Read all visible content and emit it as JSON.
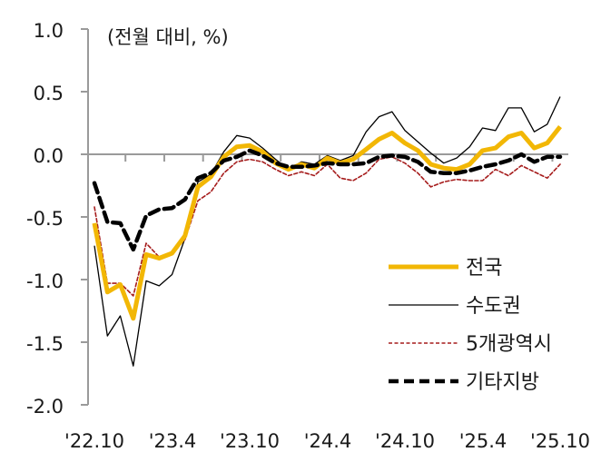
{
  "chart_data": {
    "type": "line",
    "title": "",
    "unit_note": "(전월 대비, %)",
    "xlabel": "",
    "ylabel": "",
    "ylim": [
      -2.0,
      1.0
    ],
    "yticks": [
      1.0,
      0.5,
      0.0,
      -0.5,
      -1.0,
      -1.5,
      -2.0
    ],
    "ytick_labels": [
      "1.0",
      "0.5",
      "0.0",
      "-0.5",
      "-1.0",
      "-1.5",
      "-2.0"
    ],
    "x_tick_labels": [
      "'22.10",
      "'23.4",
      "'23.10",
      "'24.4",
      "'24.10",
      "'25.4",
      "'25.10"
    ],
    "x": [
      "'22.10",
      "'22.11",
      "'22.12",
      "'23.1",
      "'23.2",
      "'23.3",
      "'23.4",
      "'23.5",
      "'23.6",
      "'23.7",
      "'23.8",
      "'23.9",
      "'23.10",
      "'23.11",
      "'23.12",
      "'24.1",
      "'24.2",
      "'24.3",
      "'24.4",
      "'24.5",
      "'24.6",
      "'24.7",
      "'24.8",
      "'24.9",
      "'24.10",
      "'24.11",
      "'24.12",
      "'25.1",
      "'25.2",
      "'25.3",
      "'25.4",
      "'25.5",
      "'25.6",
      "'25.7",
      "'25.8",
      "'25.9",
      "'25.10"
    ],
    "grid": false,
    "legend_position": "lower-right inside",
    "series": [
      {
        "name": "전국",
        "color": "#F2B705",
        "style": "solid-thick",
        "values": [
          -0.55,
          -1.1,
          -1.04,
          -1.31,
          -0.8,
          -0.83,
          -0.79,
          -0.65,
          -0.26,
          -0.18,
          -0.02,
          0.06,
          0.07,
          0.02,
          -0.07,
          -0.12,
          -0.08,
          -0.11,
          -0.03,
          -0.07,
          -0.04,
          0.04,
          0.12,
          0.17,
          0.09,
          0.03,
          -0.08,
          -0.11,
          -0.12,
          -0.08,
          0.03,
          0.05,
          0.14,
          0.17,
          0.05,
          0.09,
          0.22
        ]
      },
      {
        "name": "수도권",
        "color": "#000000",
        "style": "solid-thin",
        "values": [
          -0.73,
          -1.45,
          -1.29,
          -1.69,
          -1.01,
          -1.05,
          -0.96,
          -0.67,
          -0.22,
          -0.16,
          0.02,
          0.15,
          0.13,
          0.05,
          -0.04,
          -0.12,
          -0.06,
          -0.08,
          -0.01,
          -0.05,
          -0.01,
          0.18,
          0.3,
          0.34,
          0.19,
          0.1,
          0.01,
          -0.07,
          -0.03,
          0.06,
          0.21,
          0.19,
          0.37,
          0.37,
          0.18,
          0.24,
          0.46
        ]
      },
      {
        "name": "5개광역시",
        "color": "#A61C1C",
        "style": "dashed-thin",
        "values": [
          -0.42,
          -1.03,
          -1.03,
          -1.13,
          -0.71,
          -0.82,
          -0.79,
          -0.68,
          -0.37,
          -0.3,
          -0.15,
          -0.06,
          -0.04,
          -0.06,
          -0.12,
          -0.17,
          -0.14,
          -0.17,
          -0.08,
          -0.19,
          -0.21,
          -0.15,
          -0.04,
          -0.02,
          -0.07,
          -0.15,
          -0.26,
          -0.22,
          -0.2,
          -0.21,
          -0.21,
          -0.12,
          -0.17,
          -0.09,
          -0.14,
          -0.19,
          -0.08
        ]
      },
      {
        "name": "기타지방",
        "color": "#000000",
        "style": "dashed-thick",
        "values": [
          -0.23,
          -0.54,
          -0.55,
          -0.76,
          -0.49,
          -0.44,
          -0.43,
          -0.36,
          -0.19,
          -0.15,
          -0.05,
          -0.02,
          0.03,
          -0.01,
          -0.07,
          -0.1,
          -0.1,
          -0.09,
          -0.07,
          -0.08,
          -0.08,
          -0.07,
          -0.02,
          -0.01,
          -0.02,
          -0.06,
          -0.14,
          -0.15,
          -0.15,
          -0.13,
          -0.1,
          -0.08,
          -0.05,
          0.0,
          -0.06,
          -0.02,
          -0.02
        ]
      }
    ]
  },
  "axis_color": "#9a9a9a",
  "legend": {
    "items": [
      {
        "label": "전국"
      },
      {
        "label": "수도권"
      },
      {
        "label": "5개광역시"
      },
      {
        "label": "기타지방"
      }
    ]
  }
}
